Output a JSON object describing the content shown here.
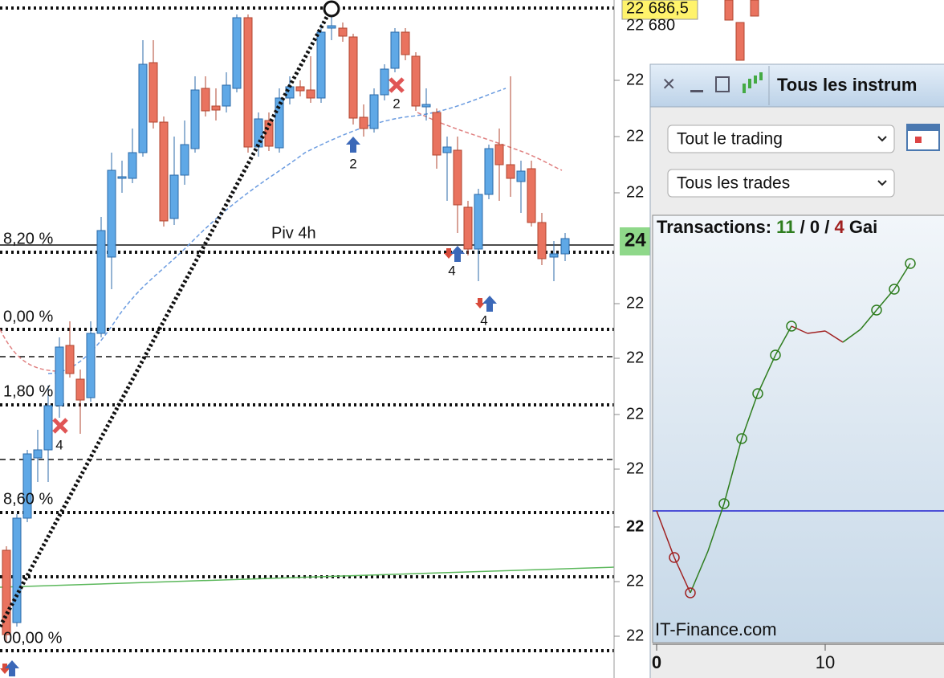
{
  "price_labels": {
    "current": "22 686,5",
    "top": "22 680",
    "axis": [
      "22",
      "22",
      "22",
      "22",
      "22",
      "22",
      "22",
      "22",
      "22",
      "22"
    ],
    "pivot_badge": "24"
  },
  "fib_levels": [
    "8,20 %",
    "0,00 %",
    "1,80 %",
    "8,60 %",
    "00,00 %"
  ],
  "pivot_label": "Piv 4h",
  "trade_labels": [
    "2",
    "2",
    "4",
    "4",
    "4"
  ],
  "panel": {
    "title": "Tous les instrum",
    "filters": [
      "Tout le trading",
      "Tous les trades"
    ],
    "transactions": {
      "label": "Transactions:",
      "wins": "11",
      "separator": "/",
      "even": "0",
      "losses": "4",
      "gain": "Gai"
    },
    "watermark": "IT-Finance.com",
    "x_ticks": [
      "0",
      "10"
    ]
  }
}
